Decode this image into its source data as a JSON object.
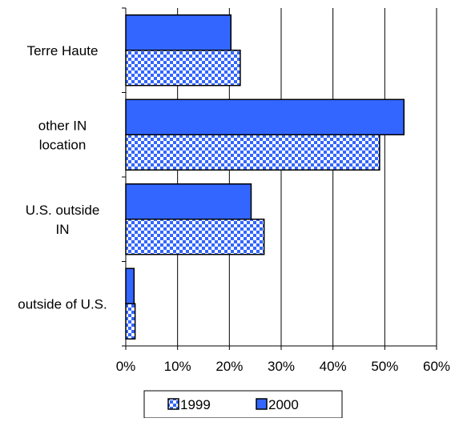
{
  "chart_data": {
    "type": "bar",
    "orientation": "horizontal",
    "categories": [
      [
        "Terre Haute"
      ],
      [
        "other IN",
        "location"
      ],
      [
        "U.S. outside",
        "IN"
      ],
      [
        "outside of U.S."
      ]
    ],
    "series": [
      {
        "name": "2000",
        "values": [
          20.3,
          53.7,
          24.2,
          1.6
        ],
        "color": "#3366ff",
        "fill": "solid"
      },
      {
        "name": "1999",
        "values": [
          22.1,
          49.0,
          26.7,
          1.8
        ],
        "color": "#3366ff",
        "fill": "dotted"
      }
    ],
    "xlim": [
      0,
      60
    ],
    "xticks": [
      0,
      10,
      20,
      30,
      40,
      50,
      60
    ],
    "xtick_labels": [
      "0%",
      "10%",
      "20%",
      "30%",
      "40%",
      "50%",
      "60%"
    ],
    "grid": "vertical",
    "legend": {
      "placement": "bottom",
      "entries": [
        {
          "label": "1999",
          "fill": "dotted"
        },
        {
          "label": "2000",
          "fill": "solid"
        }
      ]
    }
  }
}
